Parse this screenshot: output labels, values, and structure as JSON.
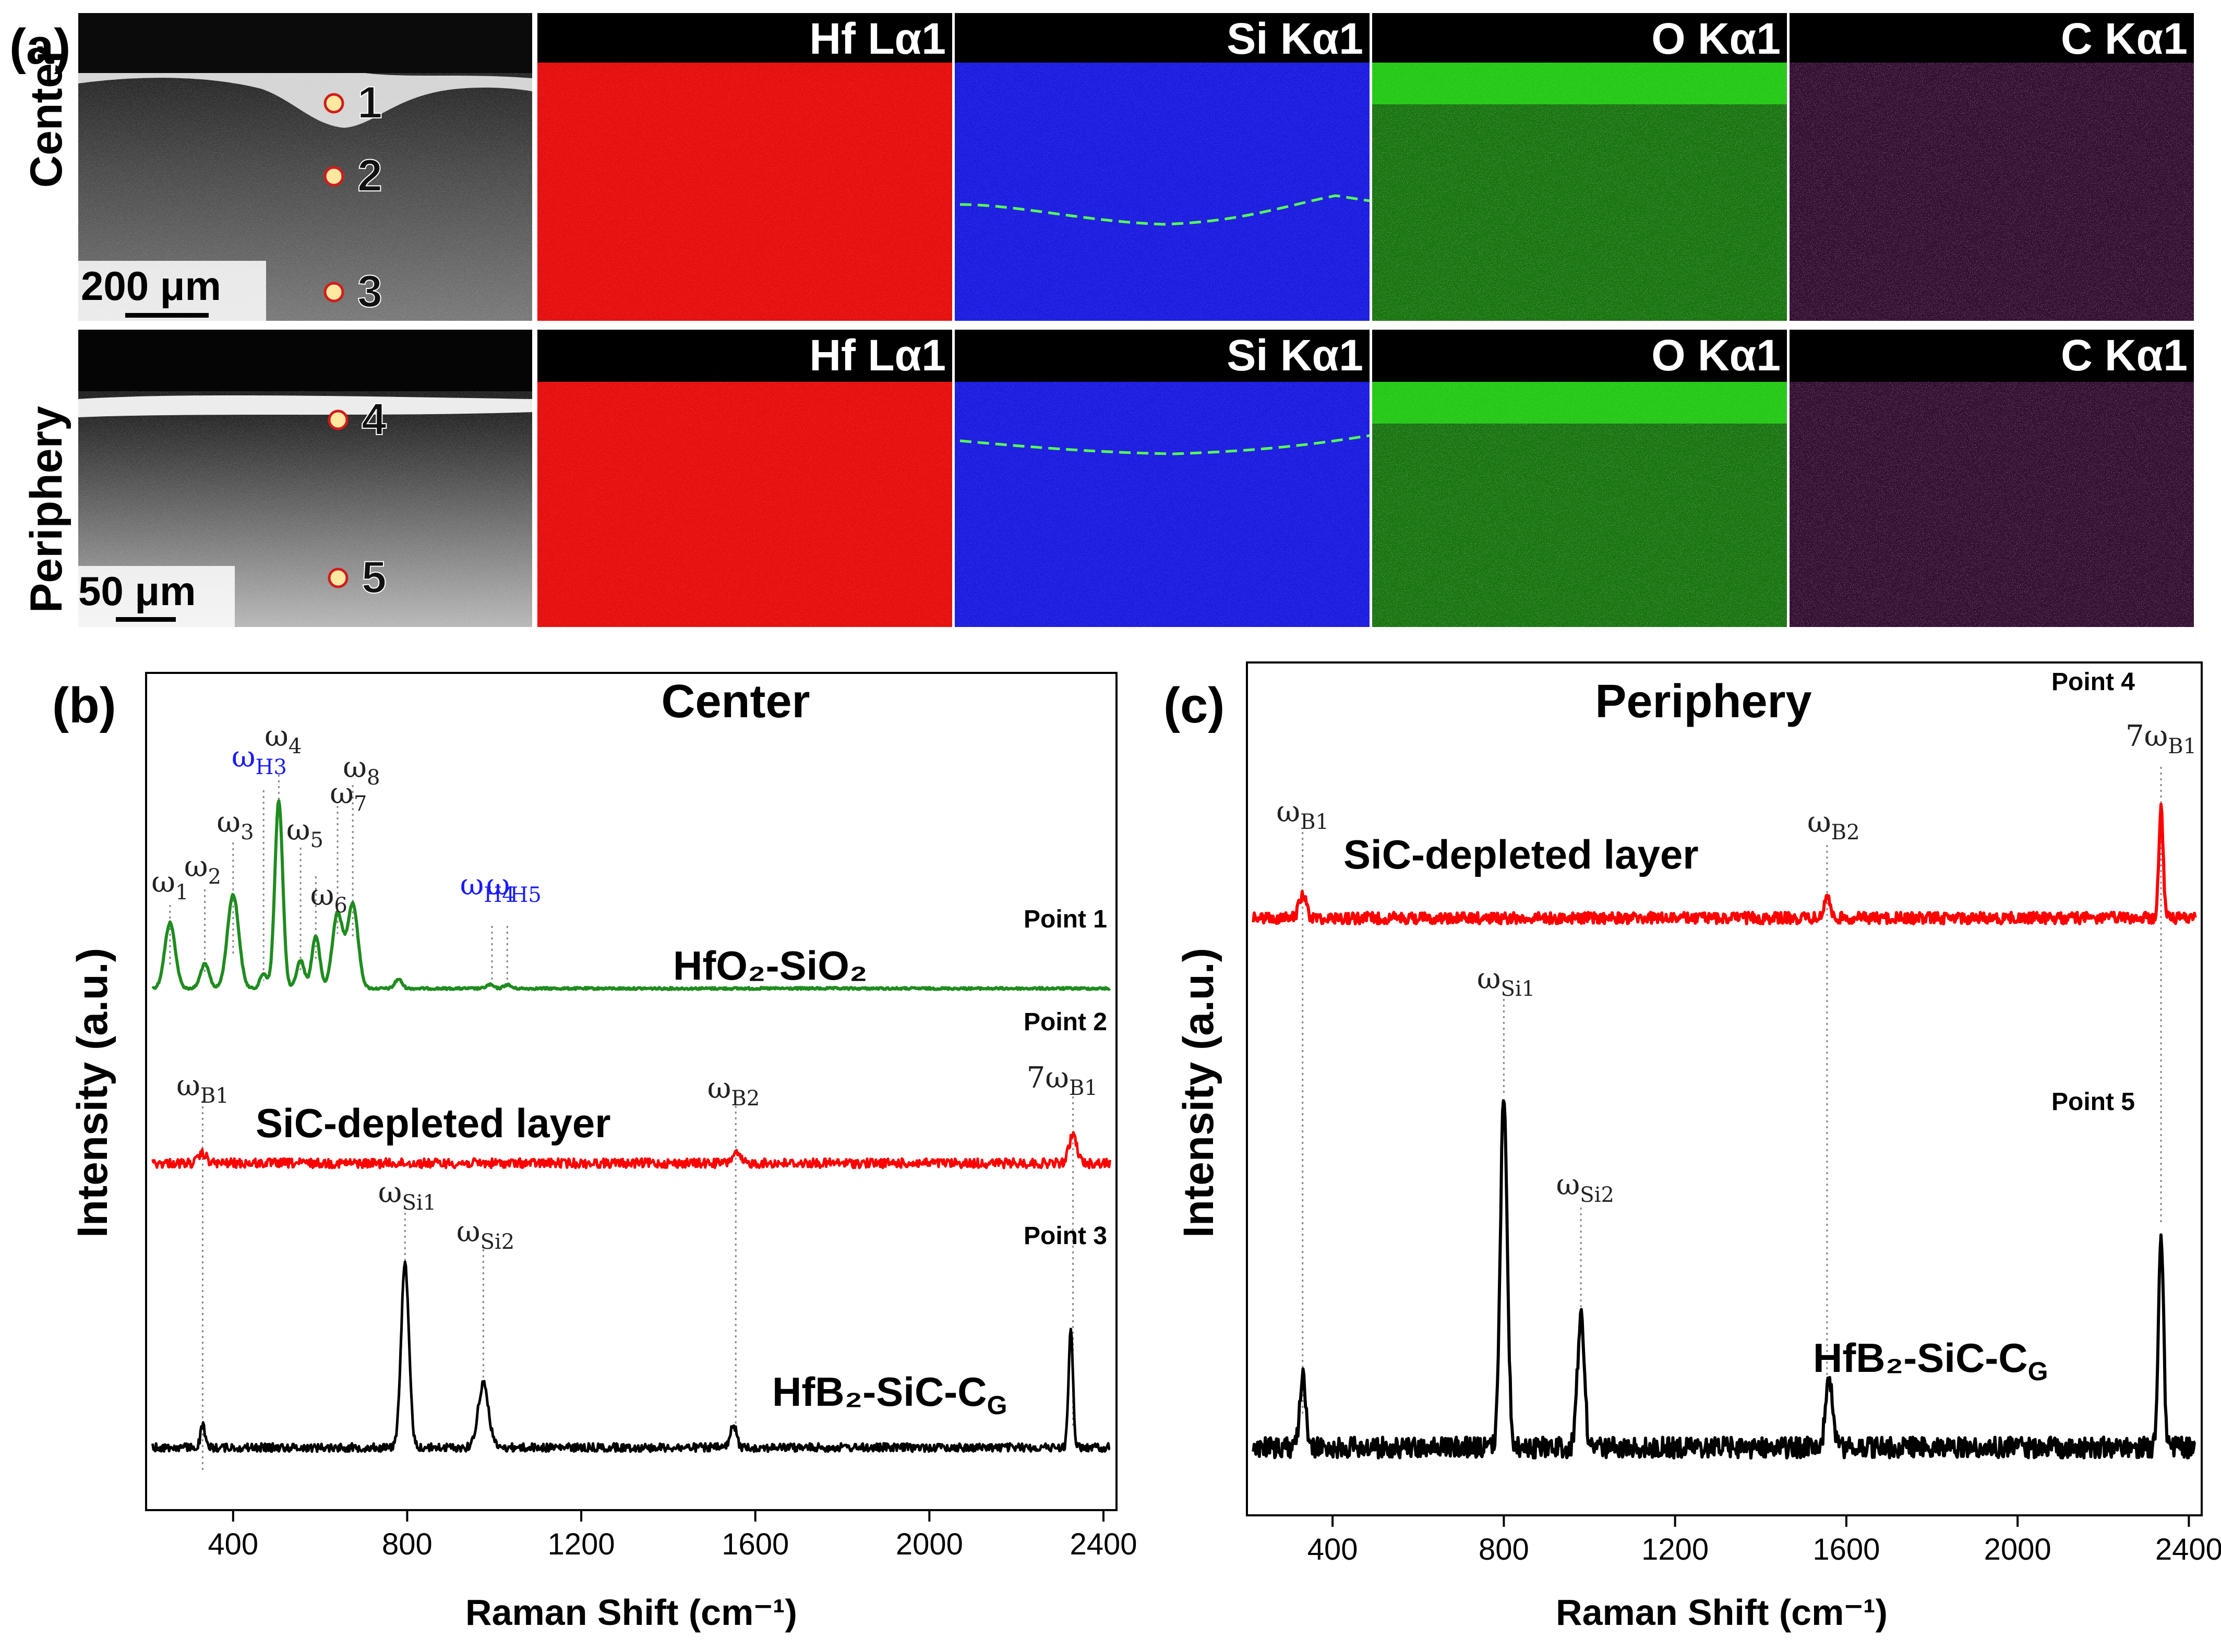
{
  "panel_labels": {
    "a": "(a)",
    "b": "(b)",
    "c": "(c)"
  },
  "panel_a": {
    "row_labels": [
      "Center",
      "Periphery"
    ],
    "scale_bars": [
      "200 μm",
      "50 μm"
    ],
    "point_labels": [
      "1",
      "2",
      "3",
      "4",
      "5"
    ],
    "map_labels": [
      "Hf Lα1",
      "Si Kα1",
      "O Kα1",
      "C Kα1"
    ],
    "map_colors": [
      "#ff1010",
      "#2020ff",
      "#30ff20",
      "#b030b0"
    ]
  },
  "panel_b": {
    "title": "Center",
    "ylabel": "Intensity (a.u.)",
    "xlabel": "Raman Shift (cm⁻¹)",
    "point_labels": [
      "Point 1",
      "Point 2",
      "Point 3"
    ],
    "traces": {
      "hfo2": {
        "label": "HfO₂-SiO₂",
        "color": "#1e8c1e"
      },
      "sic_depleted": {
        "label": "SiC-depleted layer",
        "color": "#ff0000"
      },
      "hfb2": {
        "label": "HfB₂-SiC-C",
        "label_sub": "G",
        "color": "#000000"
      }
    },
    "peak_labels": [
      {
        "sym": "ω",
        "sub": "1",
        "color": "#222222"
      },
      {
        "sym": "ω",
        "sub": "2",
        "color": "#222222"
      },
      {
        "sym": "ω",
        "sub": "3",
        "color": "#222222"
      },
      {
        "sym": "ω",
        "sub": "H3",
        "color": "#1a1aff"
      },
      {
        "sym": "ω",
        "sub": "4",
        "color": "#222222"
      },
      {
        "sym": "ω",
        "sub": "5",
        "color": "#222222"
      },
      {
        "sym": "ω",
        "sub": "6",
        "color": "#222222"
      },
      {
        "sym": "ω",
        "sub": "7",
        "color": "#222222"
      },
      {
        "sym": "ω",
        "sub": "8",
        "color": "#222222"
      },
      {
        "sym": "ω",
        "sub": "H4",
        "color": "#1a1aff"
      },
      {
        "sym": "ω",
        "sub": "H5",
        "color": "#1a1aff"
      },
      {
        "sym": "ω",
        "sub": "B1",
        "color": "#222222"
      },
      {
        "sym": "ω",
        "sub": "B2",
        "color": "#222222"
      },
      {
        "sym": "7ω",
        "sub": "B1",
        "color": "#222222"
      },
      {
        "sym": "ω",
        "sub": "Si1",
        "color": "#222222"
      },
      {
        "sym": "ω",
        "sub": "Si2",
        "color": "#222222"
      }
    ],
    "chart_data": {
      "type": "line",
      "x_range": [
        200,
        2430
      ],
      "x_ticks": [
        400,
        800,
        1200,
        1600,
        2000,
        2400
      ],
      "series": [
        {
          "name": "Point 1 (HfO2-SiO2)",
          "peaks": [
            [
              255,
              0.35
            ],
            [
              335,
              0.13
            ],
            [
              400,
              0.5
            ],
            [
              470,
              0.08
            ],
            [
              505,
              1.0
            ],
            [
              555,
              0.15
            ],
            [
              590,
              0.28
            ],
            [
              640,
              0.4
            ],
            [
              675,
              0.45
            ],
            [
              780,
              0.05
            ],
            [
              990,
              0.02
            ],
            [
              1030,
              0.02
            ]
          ]
        },
        {
          "name": "Point 2 (SiC-depleted layer)",
          "peaks": [
            [
              330,
              0.15
            ],
            [
              1555,
              0.15
            ],
            [
              2330,
              0.45
            ]
          ]
        },
        {
          "name": "Point 3 (HfB2-SiC-CG)",
          "peaks": [
            [
              330,
              0.12
            ],
            [
              795,
              1.0
            ],
            [
              975,
              0.35
            ],
            [
              1550,
              0.12
            ],
            [
              2325,
              0.65
            ]
          ]
        }
      ]
    }
  },
  "panel_c": {
    "title": "Periphery",
    "ylabel": "Intensity (a.u.)",
    "xlabel": "Raman Shift (cm⁻¹)",
    "point_labels": [
      "Point 4",
      "Point 5"
    ],
    "traces": {
      "sic_depleted": {
        "label": "SiC-depleted layer",
        "color": "#ff0000"
      },
      "hfb2": {
        "label": "HfB₂-SiC-C",
        "label_sub": "G",
        "color": "#000000"
      }
    },
    "peak_labels": [
      {
        "sym": "ω",
        "sub": "B1",
        "color": "#222222"
      },
      {
        "sym": "ω",
        "sub": "B2",
        "color": "#222222"
      },
      {
        "sym": "7ω",
        "sub": "B1",
        "color": "#222222"
      },
      {
        "sym": "ω",
        "sub": "Si1",
        "color": "#222222"
      },
      {
        "sym": "ω",
        "sub": "Si2",
        "color": "#222222"
      }
    ],
    "chart_data": {
      "type": "line",
      "x_range": [
        200,
        2430
      ],
      "x_ticks": [
        400,
        800,
        1200,
        1600,
        2000,
        2400
      ],
      "series": [
        {
          "name": "Point 4 (SiC-depleted layer)",
          "peaks": [
            [
              330,
              0.2
            ],
            [
              1555,
              0.2
            ],
            [
              2335,
              0.9
            ]
          ]
        },
        {
          "name": "Point 5 (HfB2-SiC-CG)",
          "peaks": [
            [
              330,
              0.2
            ],
            [
              800,
              1.0
            ],
            [
              980,
              0.37
            ],
            [
              1560,
              0.2
            ],
            [
              2335,
              0.6
            ]
          ]
        }
      ]
    }
  }
}
